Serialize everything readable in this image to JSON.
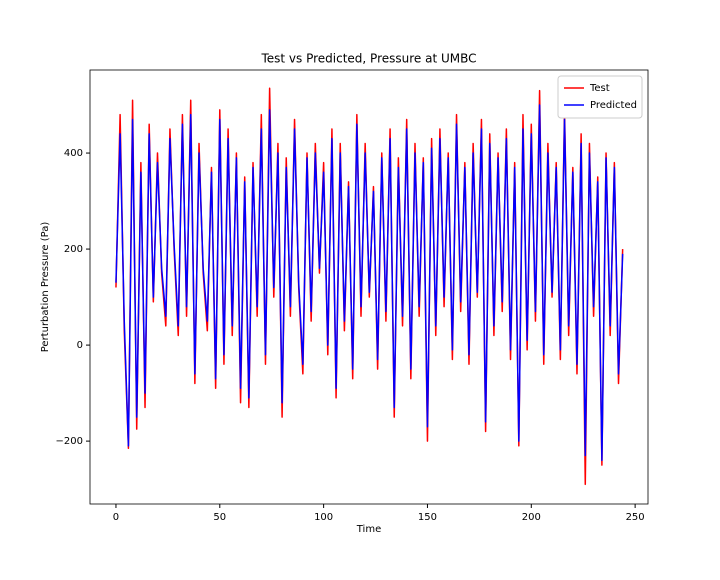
{
  "chart_data": {
    "type": "line",
    "title": "Test vs Predicted, Pressure at UMBC",
    "x_label": "Time",
    "y_label": "Perturbation Pressure (Pa)",
    "x": [
      0,
      2,
      4,
      6,
      8,
      10,
      12,
      14,
      16,
      18,
      20,
      22,
      24,
      26,
      28,
      30,
      32,
      34,
      36,
      38,
      40,
      42,
      44,
      46,
      48,
      50,
      52,
      54,
      56,
      58,
      60,
      62,
      64,
      66,
      68,
      70,
      72,
      74,
      76,
      78,
      80,
      82,
      84,
      86,
      88,
      90,
      92,
      94,
      96,
      98,
      100,
      102,
      104,
      106,
      108,
      110,
      112,
      114,
      116,
      118,
      120,
      122,
      124,
      126,
      128,
      130,
      132,
      134,
      136,
      138,
      140,
      142,
      144,
      146,
      148,
      150,
      152,
      154,
      156,
      158,
      160,
      162,
      164,
      166,
      168,
      170,
      172,
      174,
      176,
      178,
      180,
      182,
      184,
      186,
      188,
      190,
      192,
      194,
      196,
      198,
      200,
      202,
      204,
      206,
      208,
      210,
      212,
      214,
      216,
      218,
      220,
      222,
      224,
      226,
      228,
      230,
      232,
      234,
      236,
      238,
      240,
      242,
      244
    ],
    "series": [
      {
        "name": "Test",
        "color": "#ff0000",
        "values": [
          120,
          480,
          30,
          -215,
          510,
          -175,
          380,
          -130,
          460,
          90,
          400,
          150,
          40,
          450,
          200,
          20,
          480,
          60,
          510,
          -80,
          420,
          150,
          30,
          370,
          -90,
          490,
          -40,
          450,
          20,
          400,
          -120,
          350,
          -130,
          380,
          60,
          480,
          -40,
          535,
          100,
          420,
          -150,
          390,
          60,
          470,
          120,
          -60,
          400,
          50,
          420,
          150,
          380,
          -20,
          450,
          -110,
          420,
          30,
          340,
          -70,
          480,
          60,
          420,
          100,
          330,
          -50,
          400,
          50,
          450,
          -150,
          390,
          40,
          470,
          -70,
          420,
          60,
          390,
          -200,
          430,
          20,
          450,
          80,
          400,
          -30,
          480,
          70,
          380,
          -40,
          420,
          100,
          470,
          -180,
          440,
          20,
          400,
          70,
          450,
          -30,
          380,
          -210,
          480,
          -10,
          460,
          50,
          530,
          -40,
          420,
          100,
          380,
          -30,
          490,
          20,
          370,
          -60,
          440,
          -290,
          420,
          60,
          350,
          -250,
          400,
          20,
          380,
          -80,
          200
        ]
      },
      {
        "name": "Predicted",
        "color": "#0000ff",
        "values": [
          130,
          440,
          50,
          -210,
          470,
          -150,
          360,
          -100,
          440,
          100,
          380,
          160,
          60,
          430,
          210,
          40,
          460,
          80,
          480,
          -60,
          400,
          160,
          50,
          360,
          -70,
          470,
          -20,
          430,
          40,
          390,
          -90,
          340,
          -110,
          370,
          80,
          450,
          -20,
          490,
          120,
          400,
          -120,
          370,
          80,
          450,
          130,
          -40,
          390,
          70,
          400,
          160,
          360,
          0,
          430,
          -90,
          400,
          50,
          330,
          -50,
          460,
          80,
          400,
          110,
          320,
          -30,
          390,
          70,
          430,
          -130,
          370,
          60,
          450,
          -50,
          400,
          80,
          380,
          -170,
          410,
          40,
          430,
          100,
          390,
          -10,
          460,
          90,
          370,
          -20,
          400,
          110,
          450,
          -160,
          420,
          40,
          390,
          90,
          430,
          -10,
          370,
          -200,
          450,
          10,
          440,
          70,
          500,
          -20,
          400,
          110,
          370,
          -10,
          470,
          40,
          360,
          -40,
          420,
          -230,
          400,
          80,
          340,
          -240,
          390,
          40,
          370,
          -60,
          190
        ]
      }
    ],
    "xlim": [
      -12.5,
      256.2
    ],
    "ylim": [
      -331,
      573
    ],
    "xticks": [
      0,
      50,
      100,
      150,
      200,
      250
    ],
    "yticks": [
      {
        "value": -200,
        "label": "−200"
      },
      0,
      200,
      400
    ],
    "legend": "upper right"
  }
}
